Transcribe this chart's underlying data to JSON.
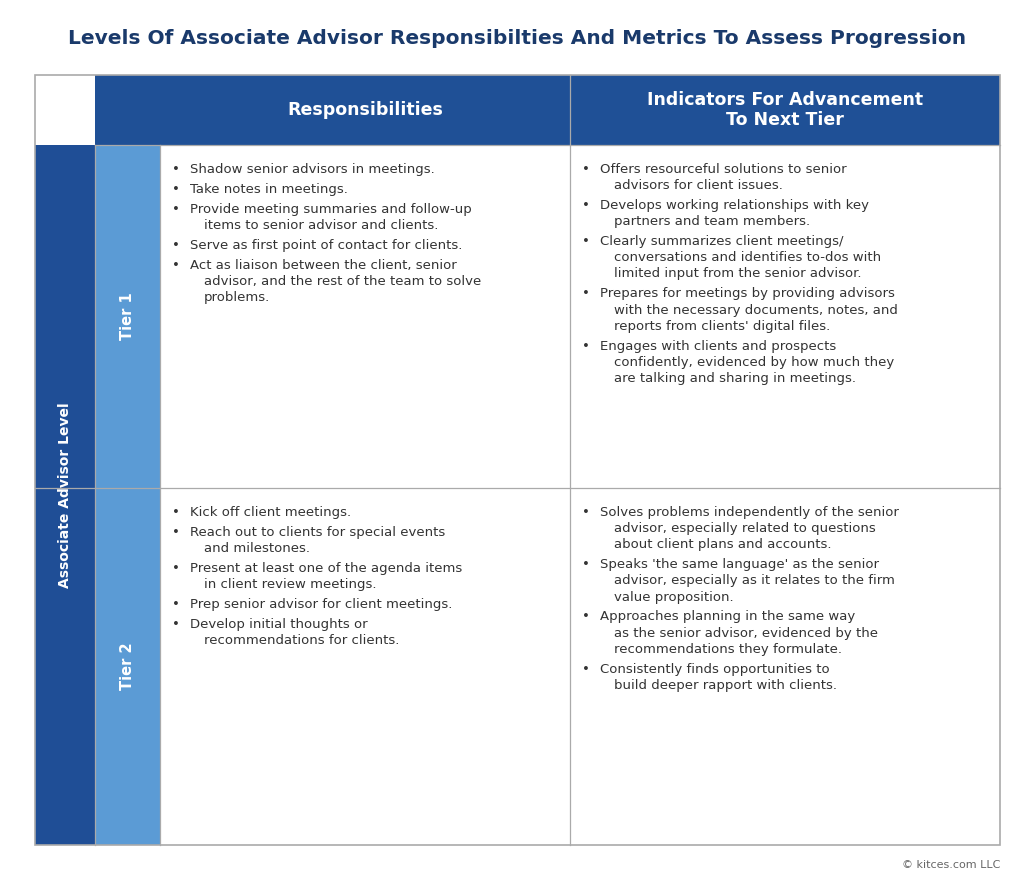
{
  "title": "Levels Of Associate Advisor Responsibilties And Metrics To Assess Progression",
  "title_color": "#1a3a6b",
  "title_fontsize": 14.5,
  "bg_color": "#ffffff",
  "header_bg": "#1f5096",
  "header_text_color": "#ffffff",
  "dark_blue": "#1f4e96",
  "light_blue": "#5b9bd5",
  "cell_bg": "#ffffff",
  "border_color": "#aaaaaa",
  "text_color": "#333333",
  "col_header_1": "Responsibilities",
  "col_header_2": "Indicators For Advancement\nTo Next Tier",
  "tier1_label": "Tier 1",
  "tier2_label": "Tier 2",
  "side_label": "Associate Advisor Level",
  "tier1_resp": [
    "Shadow senior advisors in meetings.",
    "Take notes in meetings.",
    "Provide meeting summaries and follow-up\nitems to senior advisor and clients.",
    "Serve as first point of contact for clients.",
    "Act as liaison between the client, senior\nadvisor, and the rest of the team to solve\nproblems."
  ],
  "tier1_indic": [
    "Offers resourceful solutions to senior\nadvisors for client issues.",
    "Develops working relationships with key\npartners and team members.",
    "Clearly summarizes client meetings/\nconversations and identifies to-dos with\nlimited input from the senior advisor.",
    "Prepares for meetings by providing advisors\nwith the necessary documents, notes, and\nreports from clients' digital files.",
    "Engages with clients and prospects\nconfidently, evidenced by how much they\nare talking and sharing in meetings."
  ],
  "tier2_resp": [
    "Kick off client meetings.",
    "Reach out to clients for special events\nand milestones.",
    "Present at least one of the agenda items\nin client review meetings.",
    "Prep senior advisor for client meetings.",
    "Develop initial thoughts or\nrecommendations for clients."
  ],
  "tier2_indic": [
    "Solves problems independently of the senior\nadvisor, especially related to questions\nabout client plans and accounts.",
    "Speaks 'the same language' as the senior\nadvisor, especially as it relates to the firm\nvalue proposition.",
    "Approaches planning in the same way\nas the senior advisor, evidenced by the\nrecommendations they formulate.",
    "Consistently finds opportunities to\nbuild deeper rapport with clients."
  ],
  "footer_text": "© kitces.com LLC"
}
